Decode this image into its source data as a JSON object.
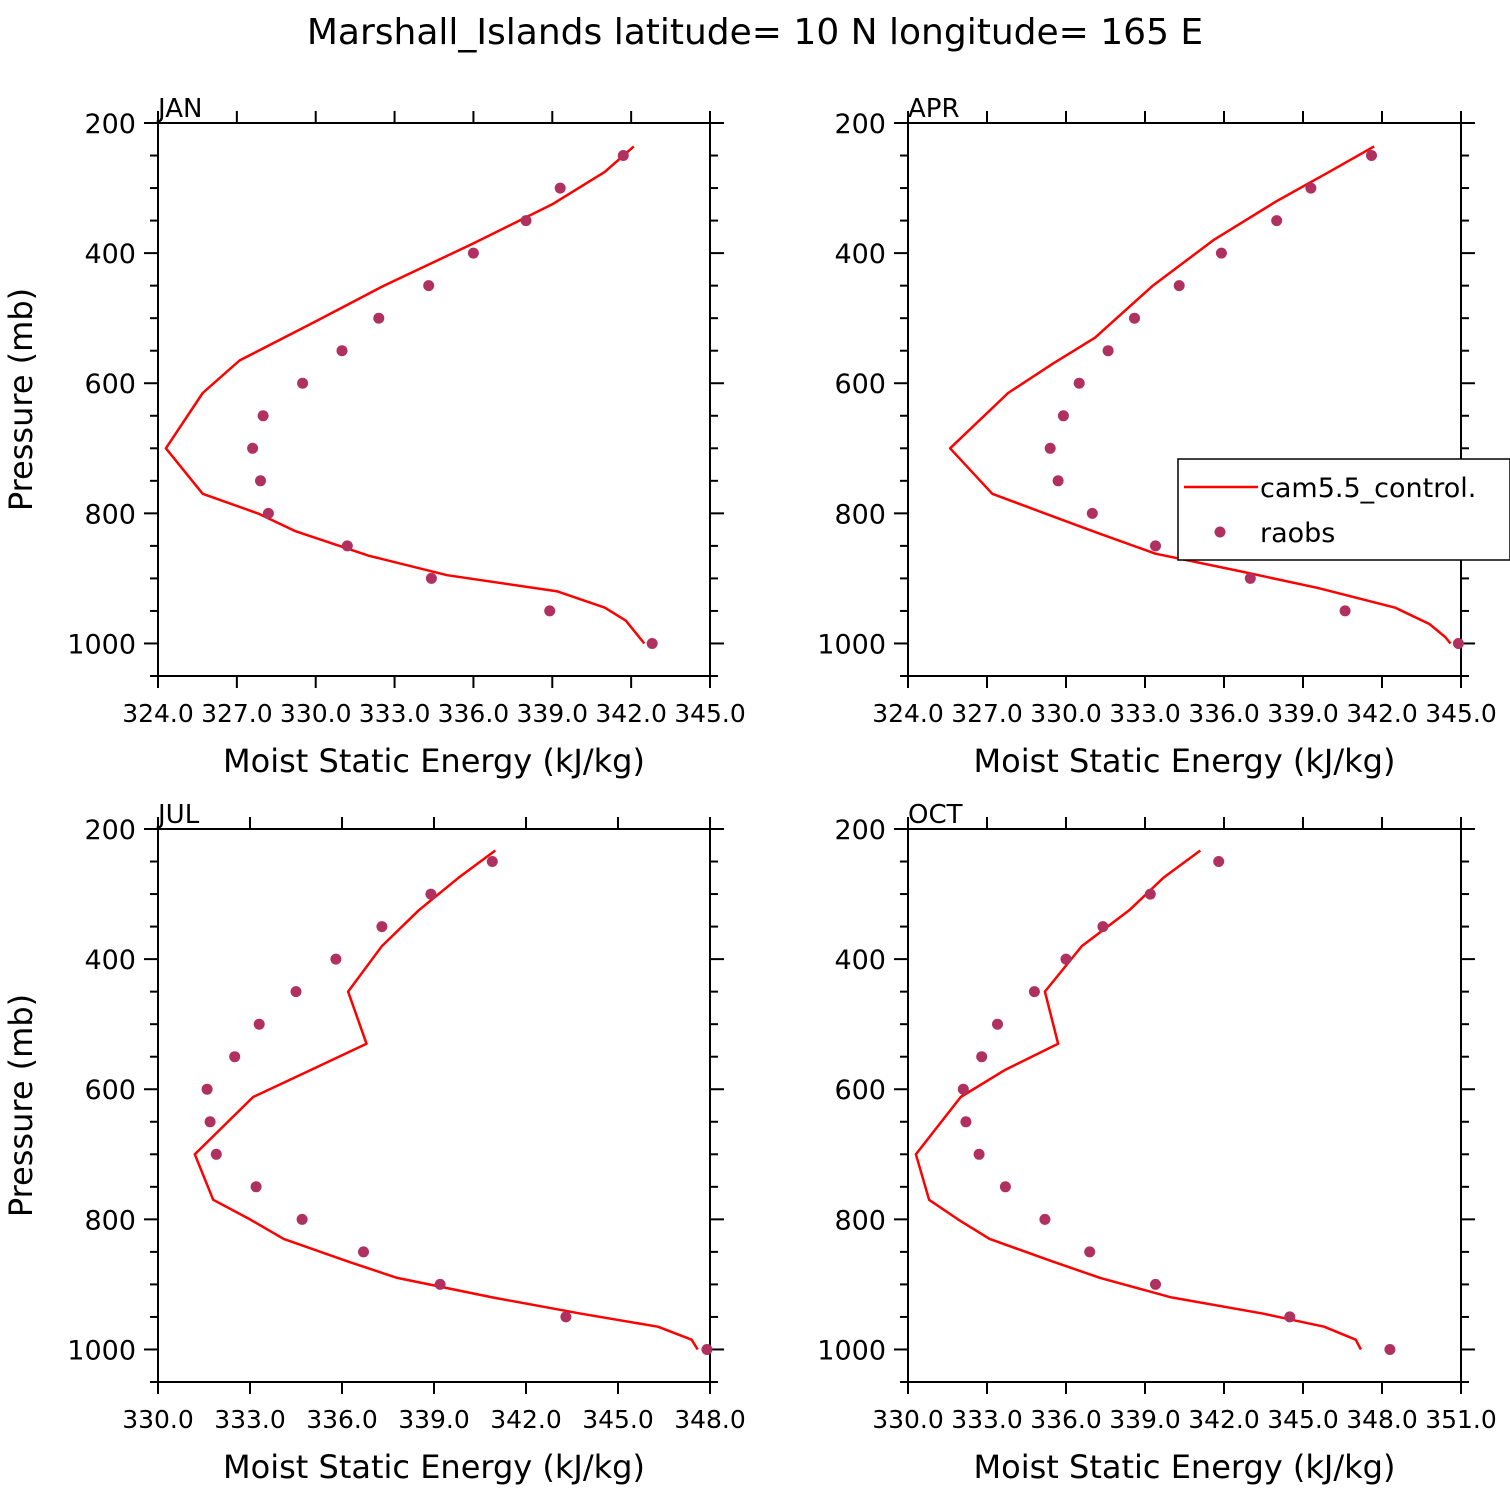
{
  "figure_title": "Marshall_Islands  latitude= 10 N longitude= 165 E",
  "legend": {
    "model_label": "cam5.5_control.",
    "obs_label": "raobs",
    "placement": "right of APR panel"
  },
  "colors": {
    "model_line": "#ff0000",
    "obs_marker": "#b03060",
    "axes": "#000000"
  },
  "chart_data": [
    {
      "type": "line",
      "panel": "JAN",
      "title": "JAN",
      "xlabel": "Moist Static Energy (kJ/kg)",
      "ylabel": "Pressure (mb)",
      "xlim": [
        324,
        345
      ],
      "ylim": [
        1000,
        200
      ],
      "xticks": [
        "324.0",
        "327.0",
        "330.0",
        "333.0",
        "336.0",
        "339.0",
        "342.0",
        "345.0"
      ],
      "yticks": [
        200,
        400,
        600,
        800,
        1000
      ],
      "grid": false,
      "series": [
        {
          "name": "cam5.5_control.",
          "kind": "line",
          "points": [
            [
              342.1,
              236
            ],
            [
              341.0,
              275
            ],
            [
              339.0,
              325
            ],
            [
              336.0,
              385
            ],
            [
              332.6,
              450
            ],
            [
              330.0,
              505
            ],
            [
              327.1,
              565
            ],
            [
              325.7,
              615
            ],
            [
              324.3,
              700
            ],
            [
              325.7,
              770
            ],
            [
              327.8,
              800
            ],
            [
              329.2,
              827
            ],
            [
              332.0,
              865
            ],
            [
              335.0,
              895
            ],
            [
              339.2,
              920
            ],
            [
              341.0,
              945
            ],
            [
              341.8,
              965
            ],
            [
              342.2,
              985
            ],
            [
              342.5,
              1000
            ]
          ]
        },
        {
          "name": "raobs",
          "kind": "scatter",
          "points": [
            [
              341.7,
              250
            ],
            [
              339.3,
              300
            ],
            [
              338.0,
              350
            ],
            [
              336.0,
              400
            ],
            [
              334.3,
              450
            ],
            [
              332.4,
              500
            ],
            [
              331.0,
              550
            ],
            [
              329.5,
              600
            ],
            [
              328.0,
              650
            ],
            [
              327.6,
              700
            ],
            [
              327.9,
              750
            ],
            [
              328.2,
              800
            ],
            [
              331.2,
              850
            ],
            [
              334.4,
              900
            ],
            [
              338.9,
              950
            ],
            [
              342.8,
              1000
            ]
          ]
        }
      ]
    },
    {
      "type": "line",
      "panel": "APR",
      "title": "APR",
      "xlabel": "Moist Static Energy (kJ/kg)",
      "ylabel": "",
      "xlim": [
        324,
        345
      ],
      "ylim": [
        1000,
        200
      ],
      "xticks": [
        "324.0",
        "327.0",
        "330.0",
        "333.0",
        "336.0",
        "339.0",
        "342.0",
        "345.0"
      ],
      "yticks": [
        200,
        400,
        600,
        800,
        1000
      ],
      "grid": false,
      "series": [
        {
          "name": "cam5.5_control.",
          "kind": "line",
          "points": [
            [
              341.7,
              236
            ],
            [
              340.0,
              275
            ],
            [
              338.0,
              320
            ],
            [
              335.6,
              380
            ],
            [
              333.3,
              450
            ],
            [
              331.1,
              530
            ],
            [
              329.5,
              570
            ],
            [
              327.8,
              615
            ],
            [
              325.6,
              700
            ],
            [
              327.2,
              770
            ],
            [
              329.2,
              800
            ],
            [
              331.2,
              830
            ],
            [
              333.4,
              862
            ],
            [
              336.5,
              888
            ],
            [
              339.6,
              915
            ],
            [
              342.5,
              945
            ],
            [
              343.8,
              970
            ],
            [
              344.4,
              990
            ],
            [
              344.6,
              1000
            ]
          ]
        },
        {
          "name": "raobs",
          "kind": "scatter",
          "points": [
            [
              341.6,
              250
            ],
            [
              339.3,
              300
            ],
            [
              338.0,
              350
            ],
            [
              335.9,
              400
            ],
            [
              334.3,
              450
            ],
            [
              332.6,
              500
            ],
            [
              331.6,
              550
            ],
            [
              330.5,
              600
            ],
            [
              329.9,
              650
            ],
            [
              329.4,
              700
            ],
            [
              329.7,
              750
            ],
            [
              331.0,
              800
            ],
            [
              333.4,
              850
            ],
            [
              337.0,
              900
            ],
            [
              340.6,
              950
            ],
            [
              344.9,
              1000
            ]
          ]
        }
      ]
    },
    {
      "type": "line",
      "panel": "JUL",
      "title": "JUL",
      "xlabel": "Moist Static Energy (kJ/kg)",
      "ylabel": "Pressure (mb)",
      "xlim": [
        330,
        348
      ],
      "ylim": [
        1000,
        200
      ],
      "xticks": [
        "330.0",
        "333.0",
        "336.0",
        "339.0",
        "342.0",
        "345.0",
        "348.0"
      ],
      "yticks": [
        200,
        400,
        600,
        800,
        1000
      ],
      "grid": false,
      "series": [
        {
          "name": "cam5.5_control.",
          "kind": "line",
          "points": [
            [
              341.0,
              233
            ],
            [
              339.8,
              275
            ],
            [
              338.5,
              325
            ],
            [
              337.3,
              380
            ],
            [
              336.2,
              450
            ],
            [
              336.8,
              530
            ],
            [
              335.0,
              570
            ],
            [
              333.1,
              612
            ],
            [
              331.2,
              700
            ],
            [
              331.8,
              770
            ],
            [
              333.0,
              800
            ],
            [
              334.1,
              830
            ],
            [
              336.2,
              865
            ],
            [
              337.8,
              890
            ],
            [
              340.9,
              920
            ],
            [
              343.8,
              945
            ],
            [
              346.3,
              965
            ],
            [
              347.4,
              985
            ],
            [
              347.6,
              1000
            ]
          ]
        },
        {
          "name": "raobs",
          "kind": "scatter",
          "points": [
            [
              340.9,
              250
            ],
            [
              338.9,
              300
            ],
            [
              337.3,
              350
            ],
            [
              335.8,
              400
            ],
            [
              334.5,
              450
            ],
            [
              333.3,
              500
            ],
            [
              332.5,
              550
            ],
            [
              331.6,
              600
            ],
            [
              331.7,
              650
            ],
            [
              331.9,
              700
            ],
            [
              333.2,
              750
            ],
            [
              334.7,
              800
            ],
            [
              336.7,
              850
            ],
            [
              339.2,
              900
            ],
            [
              343.3,
              950
            ],
            [
              347.9,
              1000
            ]
          ]
        }
      ]
    },
    {
      "type": "line",
      "panel": "OCT",
      "title": "OCT",
      "xlabel": "Moist Static Energy (kJ/kg)",
      "ylabel": "",
      "xlim": [
        330,
        351
      ],
      "ylim": [
        1000,
        200
      ],
      "xticks": [
        "330.0",
        "333.0",
        "336.0",
        "339.0",
        "342.0",
        "345.0",
        "348.0",
        "351.0"
      ],
      "yticks": [
        200,
        400,
        600,
        800,
        1000
      ],
      "grid": false,
      "series": [
        {
          "name": "cam5.5_control.",
          "kind": "line",
          "points": [
            [
              341.1,
              233
            ],
            [
              339.7,
              275
            ],
            [
              338.4,
              325
            ],
            [
              336.6,
              380
            ],
            [
              335.2,
              450
            ],
            [
              335.7,
              530
            ],
            [
              333.7,
              570
            ],
            [
              332.0,
              612
            ],
            [
              330.3,
              700
            ],
            [
              330.8,
              770
            ],
            [
              331.9,
              800
            ],
            [
              333.1,
              830
            ],
            [
              335.5,
              865
            ],
            [
              337.3,
              890
            ],
            [
              340.0,
              920
            ],
            [
              343.5,
              945
            ],
            [
              345.8,
              965
            ],
            [
              347.0,
              985
            ],
            [
              347.2,
              1000
            ]
          ]
        },
        {
          "name": "raobs",
          "kind": "scatter",
          "points": [
            [
              341.8,
              250
            ],
            [
              339.2,
              300
            ],
            [
              337.4,
              350
            ],
            [
              336.0,
              400
            ],
            [
              334.8,
              450
            ],
            [
              333.4,
              500
            ],
            [
              332.8,
              550
            ],
            [
              332.1,
              600
            ],
            [
              332.2,
              650
            ],
            [
              332.7,
              700
            ],
            [
              333.7,
              750
            ],
            [
              335.2,
              800
            ],
            [
              336.9,
              850
            ],
            [
              339.4,
              900
            ],
            [
              344.5,
              950
            ],
            [
              348.3,
              1000
            ]
          ]
        }
      ]
    }
  ]
}
